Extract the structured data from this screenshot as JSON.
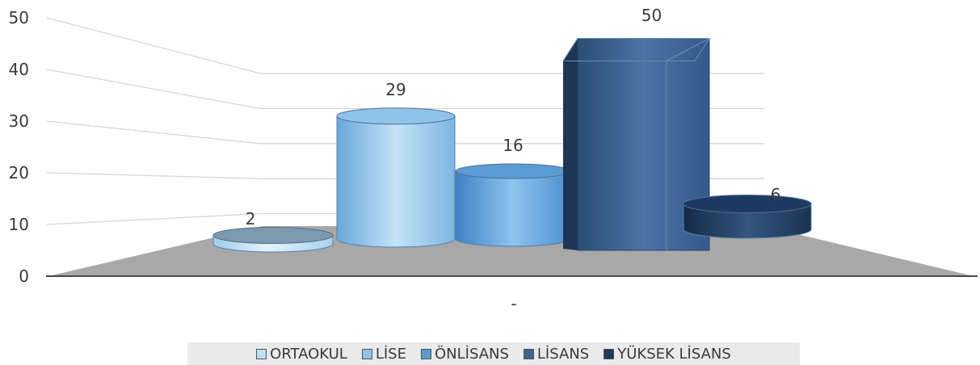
{
  "chart_data": {
    "type": "bar",
    "title": "",
    "xlabel": "",
    "ylabel": "",
    "categories": [
      "-"
    ],
    "ylim": [
      0,
      50
    ],
    "yticks": [
      "0",
      "10",
      "20",
      "30",
      "40",
      "50"
    ],
    "grid": true,
    "legend_position": "bottom",
    "series": [
      {
        "name": "ORTAOKUL",
        "values": [
          2
        ],
        "label": "2",
        "color": "#bfe0f4",
        "shape": "cylinder"
      },
      {
        "name": "LİSE",
        "values": [
          29
        ],
        "label": "29",
        "color": "#8fc3ea",
        "shape": "cylinder"
      },
      {
        "name": "ÖNLİSANS",
        "values": [
          16
        ],
        "label": "16",
        "color": "#5a9bd5",
        "shape": "cylinder"
      },
      {
        "name": "LİSANS",
        "values": [
          50
        ],
        "label": "50",
        "color": "#3f6390",
        "shape": "box"
      },
      {
        "name": "YÜKSEK LİSANS",
        "values": [
          6
        ],
        "label": "6",
        "color": "#203a5c",
        "shape": "cylinder"
      }
    ]
  }
}
